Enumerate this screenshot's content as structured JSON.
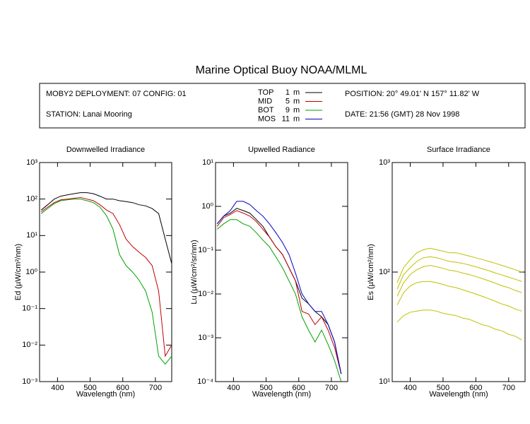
{
  "page": {
    "title": "Marine Optical Buoy NOAA/MLML",
    "deployment": "MOBY2 DEPLOYMENT: 07 CONFIG: 01",
    "station": "STATION: Lanai Mooring",
    "position": "POSITION: 20° 49.01' N   157° 11.82' W",
    "date": "DATE: 21:56 (GMT) 28 Nov 1998",
    "legend": [
      {
        "name": "TOP",
        "depth": 1,
        "unit": "m",
        "color": "#000000"
      },
      {
        "name": "MID",
        "depth": 5,
        "unit": "m",
        "color": "#c00000"
      },
      {
        "name": "BOT",
        "depth": 9,
        "unit": "m",
        "color": "#00a000"
      },
      {
        "name": "MOS",
        "depth": 11,
        "unit": "m",
        "color": "#0000c0"
      }
    ]
  },
  "chart_data": [
    {
      "type": "line",
      "title": "Downwelled Irradiance",
      "xlabel": "Wavelength (nm)",
      "ylabel": "Ed  (µW/cm²/nm)",
      "log_y": true,
      "xlim": [
        345,
        750
      ],
      "ylim": [
        0.001,
        1000
      ],
      "xticks": [
        400,
        500,
        600,
        700
      ],
      "yticks": [
        {
          "value": 0.001,
          "label": "10⁻³"
        },
        {
          "value": 0.01,
          "label": "10⁻²"
        },
        {
          "value": 0.1,
          "label": "10⁻¹"
        },
        {
          "value": 1,
          "label": "10⁰"
        },
        {
          "value": 10,
          "label": "10¹"
        },
        {
          "value": 100,
          "label": "10²"
        },
        {
          "value": 1000,
          "label": "10³"
        }
      ],
      "x": [
        350,
        370,
        390,
        410,
        430,
        450,
        470,
        490,
        510,
        530,
        550,
        570,
        590,
        610,
        630,
        650,
        670,
        690,
        710,
        730,
        750
      ],
      "series": [
        {
          "color": "#000000",
          "values": [
            50,
            70,
            100,
            120,
            130,
            140,
            150,
            150,
            140,
            120,
            100,
            100,
            90,
            85,
            80,
            70,
            65,
            55,
            40,
            8,
            1.7
          ]
        },
        {
          "color": "#c00000",
          "values": [
            45,
            60,
            80,
            95,
            100,
            105,
            110,
            100,
            90,
            70,
            50,
            40,
            20,
            8,
            5,
            3.5,
            2.5,
            1.5,
            0.3,
            0.005,
            0.01
          ]
        },
        {
          "color": "#00a000",
          "values": [
            40,
            55,
            75,
            90,
            95,
            100,
            100,
            90,
            80,
            60,
            35,
            15,
            3,
            1.5,
            1,
            0.6,
            0.3,
            0.08,
            0.005,
            0.003,
            0.005
          ]
        }
      ]
    },
    {
      "type": "line",
      "title": "Upwelled Radiance",
      "xlabel": "Wavelength (nm)",
      "ylabel": "Lu  (µW/cm²/sr/nm)",
      "log_y": true,
      "xlim": [
        345,
        750
      ],
      "ylim": [
        0.0001,
        10
      ],
      "xticks": [
        400,
        500,
        600,
        700
      ],
      "yticks": [
        {
          "value": 0.0001,
          "label": "10⁻⁴"
        },
        {
          "value": 0.001,
          "label": "10⁻³"
        },
        {
          "value": 0.01,
          "label": "10⁻²"
        },
        {
          "value": 0.1,
          "label": "10⁻¹"
        },
        {
          "value": 1,
          "label": "10⁰"
        },
        {
          "value": 10,
          "label": "10¹"
        }
      ],
      "x": [
        350,
        370,
        390,
        410,
        430,
        450,
        470,
        490,
        510,
        530,
        550,
        570,
        590,
        610,
        630,
        650,
        670,
        690,
        710,
        730
      ],
      "series": [
        {
          "color": "#000000",
          "values": [
            0.4,
            0.6,
            0.7,
            0.9,
            0.8,
            0.7,
            0.5,
            0.35,
            0.2,
            0.12,
            0.08,
            0.04,
            0.02,
            0.008,
            0.006,
            0.004,
            0.003,
            0.002,
            0.0008,
            0.00015
          ]
        },
        {
          "color": "#c00000",
          "values": [
            0.35,
            0.55,
            0.65,
            0.8,
            0.7,
            0.6,
            0.45,
            0.3,
            0.2,
            0.12,
            0.08,
            0.04,
            0.02,
            0.004,
            0.0035,
            0.002,
            0.003,
            0.0015,
            0.0006,
            0.00015
          ]
        },
        {
          "color": "#00a000",
          "values": [
            0.3,
            0.4,
            0.5,
            0.5,
            0.4,
            0.35,
            0.25,
            0.17,
            0.12,
            0.07,
            0.04,
            0.02,
            0.01,
            0.003,
            0.0015,
            0.0008,
            0.0015,
            0.0007,
            0.0003,
            0.0001
          ]
        },
        {
          "color": "#0000c0",
          "values": [
            0.4,
            0.6,
            0.8,
            1.3,
            1.3,
            1.1,
            0.8,
            0.6,
            0.4,
            0.25,
            0.15,
            0.08,
            0.03,
            0.01,
            0.006,
            0.004,
            0.004,
            0.002,
            0.0008,
            0.00015
          ]
        }
      ]
    },
    {
      "type": "line",
      "title": "Surface Irradiance",
      "xlabel": "Wavelength (nm)",
      "ylabel": "Es  (µW/cm²/nm)",
      "log_y": true,
      "xlim": [
        345,
        750
      ],
      "ylim": [
        10,
        1000
      ],
      "xticks": [
        400,
        500,
        600,
        700
      ],
      "yticks": [
        {
          "value": 10,
          "label": "10¹"
        },
        {
          "value": 100,
          "label": "10²"
        },
        {
          "value": 1000,
          "label": "10³"
        }
      ],
      "x": [
        360,
        380,
        400,
        420,
        440,
        460,
        480,
        500,
        520,
        540,
        560,
        580,
        600,
        620,
        640,
        660,
        680,
        700,
        720,
        740
      ],
      "series": [
        {
          "color": "#c0c000",
          "values": [
            80,
            110,
            130,
            150,
            160,
            165,
            160,
            155,
            150,
            150,
            145,
            140,
            135,
            130,
            125,
            120,
            115,
            110,
            105,
            100
          ]
        },
        {
          "color": "#c0c000",
          "values": [
            70,
            95,
            110,
            125,
            135,
            138,
            135,
            130,
            125,
            123,
            120,
            116,
            112,
            107,
            103,
            98,
            94,
            90,
            86,
            82
          ]
        },
        {
          "color": "#c0c000",
          "values": [
            60,
            80,
            95,
            105,
            112,
            115,
            112,
            108,
            104,
            102,
            98,
            95,
            91,
            87,
            83,
            79,
            75,
            72,
            68,
            65
          ]
        },
        {
          "color": "#c0c000",
          "values": [
            50,
            65,
            75,
            80,
            82,
            82,
            80,
            77,
            74,
            72,
            69,
            66,
            63,
            60,
            57,
            54,
            51,
            49,
            46,
            44
          ]
        },
        {
          "color": "#c0c000",
          "values": [
            35,
            40,
            43,
            44,
            45,
            45,
            44,
            42,
            41,
            40,
            38,
            37,
            35,
            33,
            32,
            30,
            29,
            27,
            26,
            24
          ]
        }
      ]
    }
  ]
}
